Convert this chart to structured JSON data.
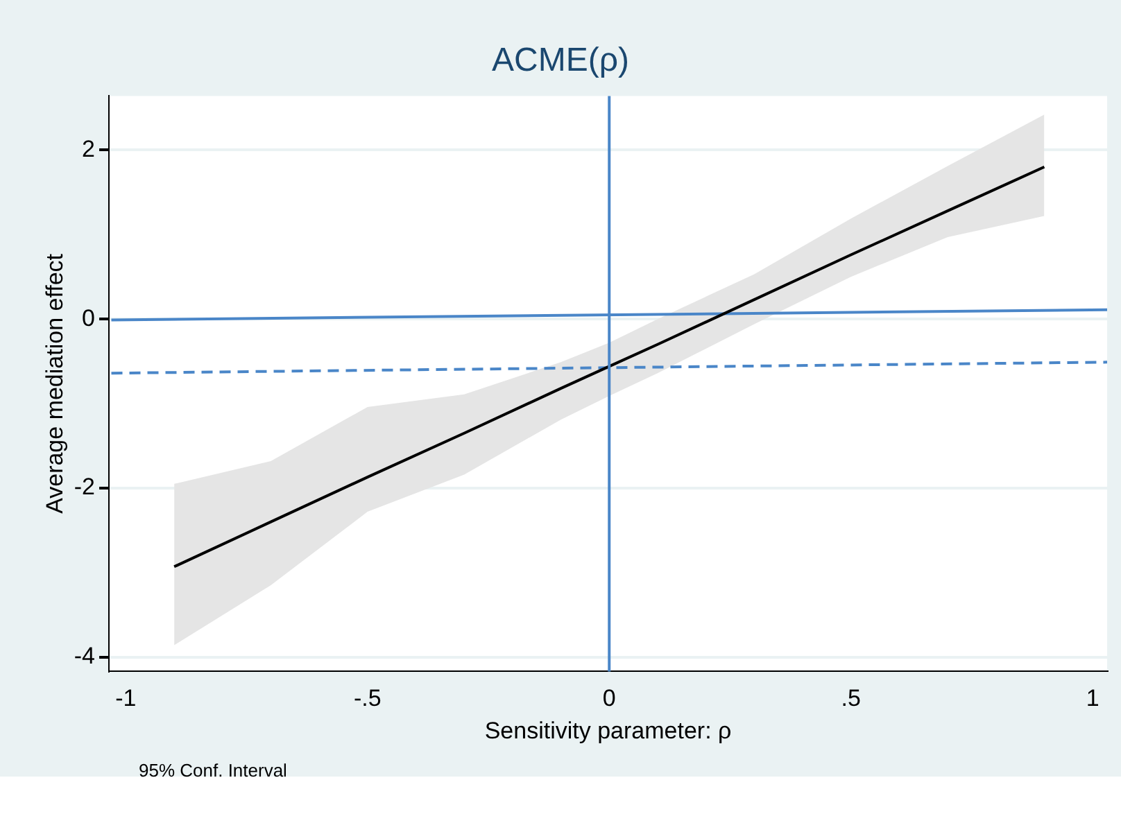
{
  "chart_data": {
    "type": "line",
    "title": "ACME(ρ)",
    "xlabel": "Sensitivity parameter: ρ",
    "ylabel": "Average mediation effect",
    "annotations": [
      "95% Conf. Interval"
    ],
    "xlim": [
      -1.035,
      1.03
    ],
    "ylim": [
      -4.17,
      2.64
    ],
    "xticks": [
      {
        "value": -1,
        "label": "-1"
      },
      {
        "value": -0.5,
        "label": "-.5"
      },
      0,
      {
        "value": 0.5,
        "label": ".5"
      },
      1
    ],
    "yticks": [
      -4,
      -2,
      0,
      2
    ],
    "grid": "y",
    "legend": false,
    "marker": "none",
    "ref_lines": [
      {
        "axis": "x",
        "value": 0,
        "color": "#4a86c8"
      }
    ],
    "series": [
      {
        "color": "#000000",
        "x": [
          -0.9,
          -0.7,
          -0.5,
          -0.3,
          -0.1,
          0,
          0.1,
          0.3,
          0.5,
          0.7,
          0.9
        ],
        "values": [
          -2.93,
          -2.4,
          -1.87,
          -1.35,
          -0.82,
          -0.56,
          -0.3,
          0.23,
          0.76,
          1.28,
          1.8
        ],
        "lower": [
          -3.86,
          -3.15,
          -2.28,
          -1.84,
          -1.19,
          -0.91,
          -0.64,
          -0.06,
          0.5,
          0.97,
          1.22
        ],
        "upper": [
          -1.95,
          -1.68,
          -1.04,
          -0.89,
          -0.51,
          -0.28,
          0.0,
          0.53,
          1.19,
          1.81,
          2.42
        ]
      },
      {
        "color": "#4a86c8",
        "x": [
          -1.03,
          1.03
        ],
        "values": [
          -0.01,
          0.11
        ],
        "line_style": "solid"
      },
      {
        "color": "#4a86c8",
        "x": [
          -1.03,
          1.03
        ],
        "values": [
          -0.64,
          -0.51
        ],
        "line_style": "dashed"
      }
    ]
  }
}
